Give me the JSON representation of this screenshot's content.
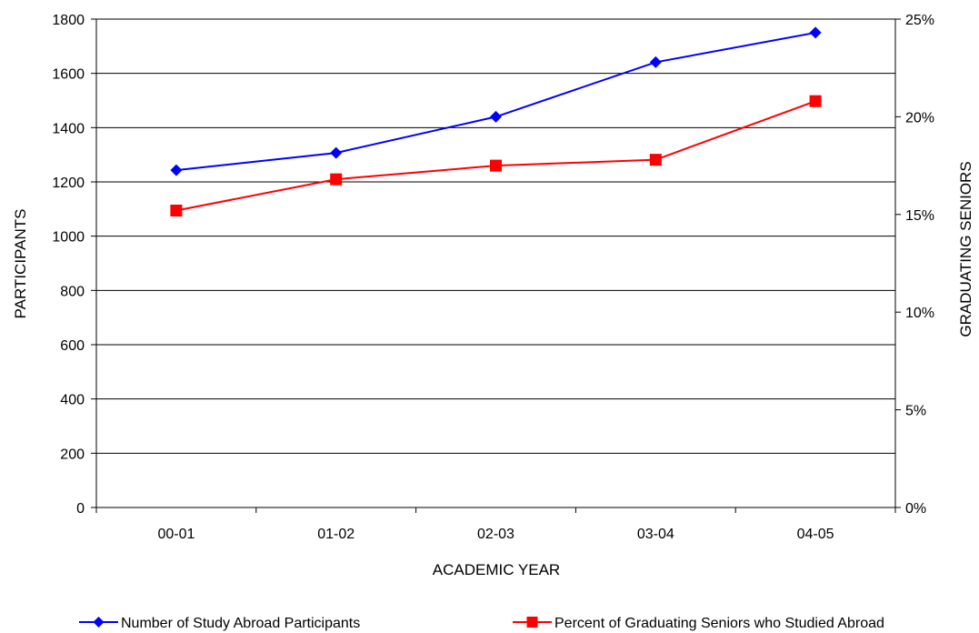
{
  "chart_data": {
    "type": "line",
    "categories": [
      "00-01",
      "01-02",
      "02-03",
      "03-04",
      "04-05"
    ],
    "xlabel": "ACADEMIC YEAR",
    "ylabel": "PARTICIPANTS",
    "y2label": "GRADUATING SENIORS",
    "ylim": [
      0,
      1800
    ],
    "yticks": [
      "0",
      "200",
      "400",
      "600",
      "800",
      "1000",
      "1200",
      "1400",
      "1600",
      "1800"
    ],
    "y2lim": [
      0,
      0.25
    ],
    "y2ticks": [
      "0%",
      "5%",
      "10%",
      "15%",
      "20%",
      "25%"
    ],
    "grid": true,
    "legend_position": "bottom",
    "series": [
      {
        "name": "Number of Study Abroad Participants",
        "axis": "left",
        "marker": "diamond",
        "color": "#0000FF",
        "values": [
          1243,
          1307,
          1440,
          1641,
          1750
        ]
      },
      {
        "name": "Percent of Graduating Seniors who Studied Abroad",
        "axis": "right",
        "marker": "square",
        "color": "#FF0000",
        "values": [
          0.152,
          0.168,
          0.175,
          0.178,
          0.208
        ]
      }
    ]
  }
}
